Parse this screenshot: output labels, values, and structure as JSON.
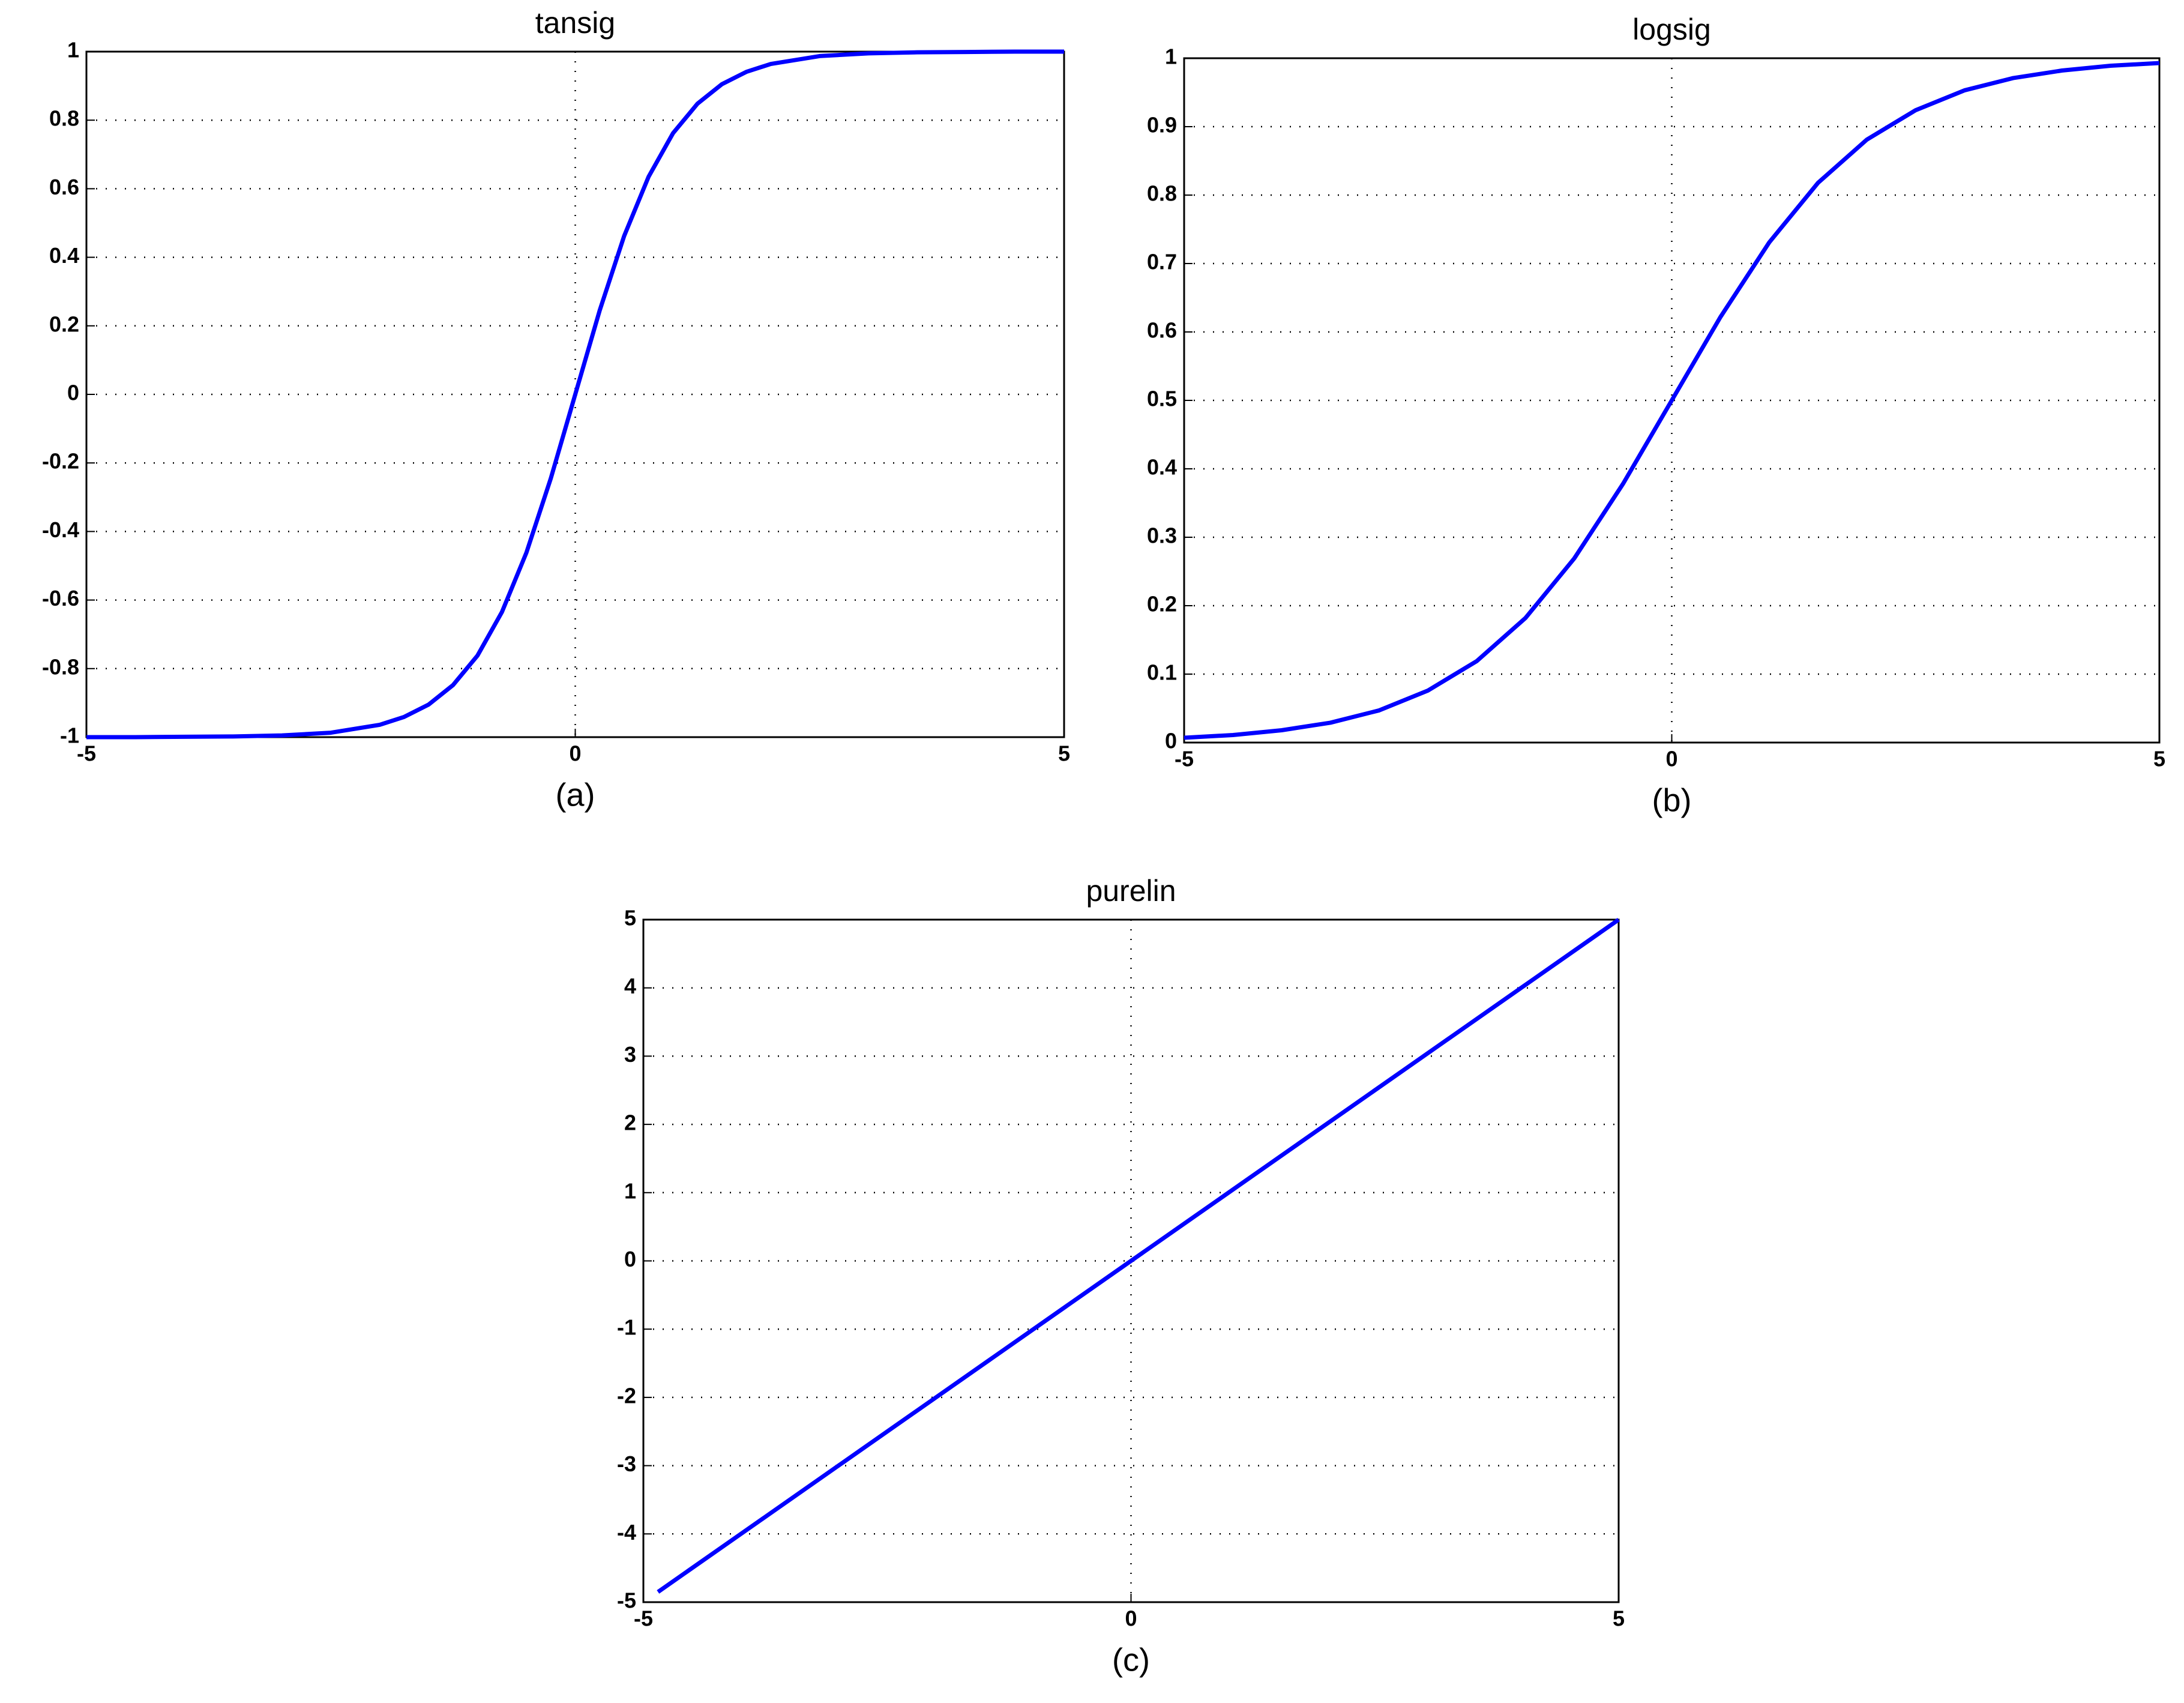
{
  "chart_data": [
    {
      "type": "line",
      "title": "tansig",
      "caption": "(a)",
      "x": [
        -5,
        -4.5,
        -4,
        -3.5,
        -3,
        -2.5,
        -2,
        -1.75,
        -1.5,
        -1.25,
        -1,
        -0.75,
        -0.5,
        -0.25,
        0,
        0.25,
        0.5,
        0.75,
        1,
        1.25,
        1.5,
        1.75,
        2,
        2.5,
        3,
        3.5,
        4,
        4.5,
        5
      ],
      "series": [
        {
          "color": "#0000ff",
          "values": [
            -1.0,
            -1.0,
            -0.999,
            -0.998,
            -0.995,
            -0.987,
            -0.964,
            -0.941,
            -0.905,
            -0.848,
            -0.762,
            -0.635,
            -0.462,
            -0.245,
            0,
            0.245,
            0.462,
            0.635,
            0.762,
            0.848,
            0.905,
            0.941,
            0.964,
            0.987,
            0.995,
            0.998,
            0.999,
            1.0,
            1.0
          ]
        }
      ],
      "xlim": [
        -5,
        5
      ],
      "xticks": [
        -5,
        0,
        5
      ],
      "ylim": [
        -1,
        1
      ],
      "yticks": [
        -1,
        -0.8,
        -0.6,
        -0.4,
        -0.2,
        0,
        0.2,
        0.4,
        0.6,
        0.8,
        1
      ],
      "grid": true
    },
    {
      "type": "line",
      "title": "logsig",
      "caption": "(b)",
      "x": [
        -5,
        -4.5,
        -4,
        -3.5,
        -3,
        -2.5,
        -2,
        -1.5,
        -1,
        -0.5,
        0,
        0.5,
        1,
        1.5,
        2,
        2.5,
        3,
        3.5,
        4,
        4.5,
        5
      ],
      "series": [
        {
          "color": "#0000ff",
          "values": [
            0.007,
            0.011,
            0.018,
            0.029,
            0.047,
            0.076,
            0.119,
            0.182,
            0.269,
            0.378,
            0.5,
            0.622,
            0.731,
            0.818,
            0.881,
            0.924,
            0.953,
            0.971,
            0.982,
            0.989,
            0.993
          ]
        }
      ],
      "xlim": [
        -5,
        5
      ],
      "xticks": [
        -5,
        0,
        5
      ],
      "ylim": [
        0,
        1
      ],
      "yticks": [
        0,
        0.1,
        0.2,
        0.3,
        0.4,
        0.5,
        0.6,
        0.7,
        0.8,
        0.9,
        1
      ],
      "grid": true
    },
    {
      "type": "line",
      "title": "purelin",
      "caption": "(c)",
      "x": [
        -4.85,
        5
      ],
      "series": [
        {
          "color": "#0000ff",
          "values": [
            -4.85,
            5
          ]
        }
      ],
      "xlim": [
        -5,
        5
      ],
      "xticks": [
        -5,
        0,
        5
      ],
      "ylim": [
        -5,
        5
      ],
      "yticks": [
        -5,
        -4,
        -3,
        -2,
        -1,
        0,
        1,
        2,
        3,
        4,
        5
      ],
      "grid": true
    }
  ]
}
